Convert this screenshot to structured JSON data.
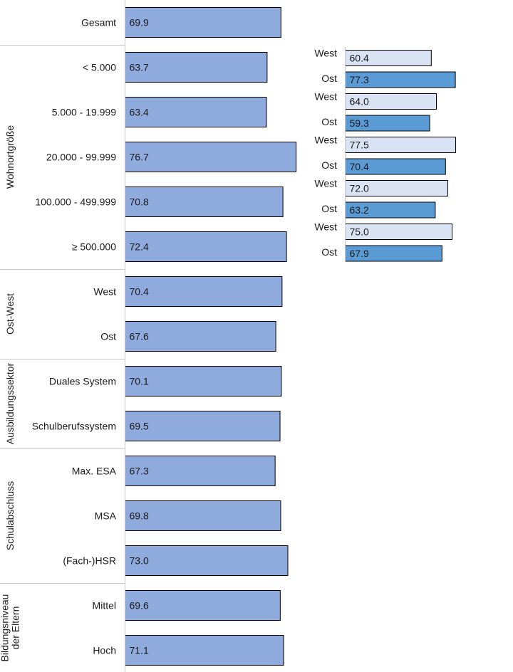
{
  "chart_data": [
    {
      "type": "bar",
      "orientation": "horizontal",
      "bar_color": "#8faadc",
      "rows": [
        {
          "label": "Gesamt",
          "value": 69.9
        },
        {
          "label": "< 5.000",
          "value": 63.7
        },
        {
          "label": "5.000 - 19.999",
          "value": 63.4
        },
        {
          "label": "20.000 - 99.999",
          "value": 76.7
        },
        {
          "label": "100.000 - 499.999",
          "value": 70.8
        },
        {
          "label": "≥ 500.000",
          "value": 72.4
        },
        {
          "label": "West",
          "value": 70.4
        },
        {
          "label": "Ost",
          "value": 67.6
        },
        {
          "label": "Duales System",
          "value": 70.1
        },
        {
          "label": "Schulberufssystem",
          "value": 69.5
        },
        {
          "label": "Max. ESA",
          "value": 67.3
        },
        {
          "label": "MSA",
          "value": 69.8
        },
        {
          "label": "(Fach-)HSR",
          "value": 73.0
        },
        {
          "label": "Mittel",
          "value": 69.6
        },
        {
          "label": "Hoch",
          "value": 71.1
        }
      ],
      "groups": [
        {
          "label": "Wohnortgröße",
          "lines": [
            "Wohnortgröße"
          ]
        },
        {
          "label": "Ost-West",
          "lines": [
            "Ost-West"
          ]
        },
        {
          "label": "Ausbildungssektor",
          "lines": [
            "Ausbildungssektor"
          ]
        },
        {
          "label": "Schulabschluss",
          "lines": [
            "Schulabschluss"
          ]
        },
        {
          "label": "Bildungsniveau der Eltern",
          "lines": [
            "Bildungsniveau",
            "der Eltern"
          ]
        }
      ]
    },
    {
      "type": "bar",
      "orientation": "horizontal",
      "colors": {
        "West": "#dae3f3",
        "Ost": "#5b9bd5"
      },
      "rows": [
        {
          "label": "West",
          "value": 60.4
        },
        {
          "label": "Ost",
          "value": 77.3
        },
        {
          "label": "West",
          "value": 64.0
        },
        {
          "label": "Ost",
          "value": 59.3
        },
        {
          "label": "West",
          "value": 77.5
        },
        {
          "label": "Ost",
          "value": 70.4
        },
        {
          "label": "West",
          "value": 72.0
        },
        {
          "label": "Ost",
          "value": 63.2
        },
        {
          "label": "West",
          "value": 75.0
        },
        {
          "label": "Ost",
          "value": 67.9
        }
      ]
    }
  ]
}
